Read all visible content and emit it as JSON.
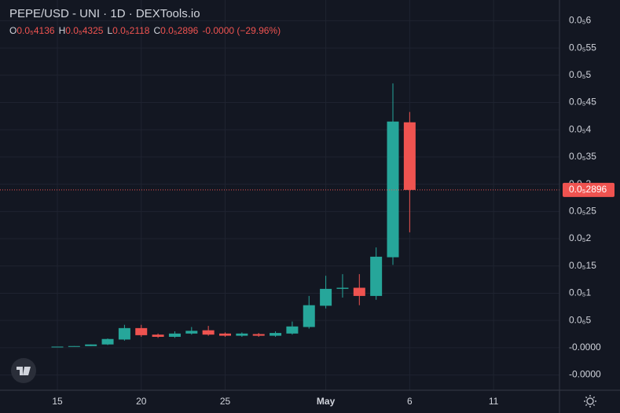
{
  "chart_data": {
    "type": "candlestick",
    "title": "PEPE/USD - UNI · 1D · DEXTools.io",
    "legend": [
      {
        "key": "O",
        "text": "0.0₅4136"
      },
      {
        "key": "H",
        "text": "0.0₅4325"
      },
      {
        "key": "L",
        "text": "0.0₅2118"
      },
      {
        "key": "C",
        "text": "0.0₅2896"
      }
    ],
    "change": "-0.0000 (−29.96%)",
    "categories": [
      "15",
      null,
      null,
      null,
      null,
      "20",
      null,
      null,
      null,
      null,
      "25",
      null,
      null,
      null,
      null,
      null,
      "May",
      null,
      null,
      null,
      null,
      "6",
      null,
      null,
      null,
      null,
      "11"
    ],
    "open": [
      1e-08,
      2e-08,
      3e-08,
      6e-08,
      1.5e-07,
      3.6e-07,
      2.4e-07,
      2e-07,
      2.6e-07,
      3.2e-07,
      2.6e-07,
      2.2e-07,
      2.5e-07,
      2.2e-07,
      2.6e-07,
      3.8e-07,
      7.7e-07,
      1.08e-06,
      1.1e-06,
      9.5e-07,
      1.66e-06,
      4.136e-06,
      null,
      null,
      null,
      null,
      null
    ],
    "high": [
      2e-08,
      3e-08,
      6e-08,
      1.7e-07,
      4.2e-07,
      4.2e-07,
      2.6e-07,
      3e-07,
      3.8e-07,
      4e-07,
      2.8e-07,
      2.8e-07,
      2.7e-07,
      3e-07,
      4.8e-07,
      9.5e-07,
      1.32e-06,
      1.35e-06,
      1.35e-06,
      1.84e-06,
      4.85e-06,
      4.325e-06,
      null,
      null,
      null,
      null,
      null
    ],
    "low": [
      1e-08,
      2e-08,
      3e-08,
      5e-08,
      1.3e-07,
      2e-07,
      1.8e-07,
      1.8e-07,
      2.4e-07,
      2.2e-07,
      2e-07,
      2e-07,
      2e-07,
      2e-07,
      2.4e-07,
      3.5e-07,
      7.2e-07,
      9.2e-07,
      7.8e-07,
      8.8e-07,
      1.52e-06,
      2.118e-06,
      null,
      null,
      null,
      null,
      null
    ],
    "close": [
      2e-08,
      3e-08,
      6e-08,
      1.6e-07,
      3.6e-07,
      2.3e-07,
      2e-07,
      2.6e-07,
      3.1e-07,
      2.4e-07,
      2.2e-07,
      2.6e-07,
      2.2e-07,
      2.7e-07,
      3.9e-07,
      7.8e-07,
      1.08e-06,
      1.1e-06,
      9.5e-07,
      1.67e-06,
      4.15e-06,
      2.896e-06,
      null,
      null,
      null,
      null,
      null
    ],
    "up_color": "#26a69a",
    "down_color": "#ef5350",
    "last_price": 2.896e-06,
    "last_price_label": "0.0₅2896",
    "ylim": [
      -7.8e-07,
      6.38e-06
    ],
    "yticks": [
      {
        "value": -5e-07,
        "label": "-0.0000"
      },
      {
        "value": 0,
        "label": "-0.0000"
      },
      {
        "value": 5e-07,
        "label": "0.0₆5"
      },
      {
        "value": 1e-06,
        "label": "0.0₅1"
      },
      {
        "value": 1.5e-06,
        "label": "0.0₅15"
      },
      {
        "value": 2e-06,
        "label": "0.0₅2"
      },
      {
        "value": 2.5e-06,
        "label": "0.0₅25"
      },
      {
        "value": 3e-06,
        "label": "0.0₅3"
      },
      {
        "value": 3.5e-06,
        "label": "0.0₅35"
      },
      {
        "value": 4e-06,
        "label": "0.0₅4"
      },
      {
        "value": 4.5e-06,
        "label": "0.0₅45"
      },
      {
        "value": 5e-06,
        "label": "0.0₅5"
      },
      {
        "value": 5.5e-06,
        "label": "0.0₅55"
      },
      {
        "value": 6e-06,
        "label": "0.0₅6"
      }
    ],
    "grid": true
  }
}
